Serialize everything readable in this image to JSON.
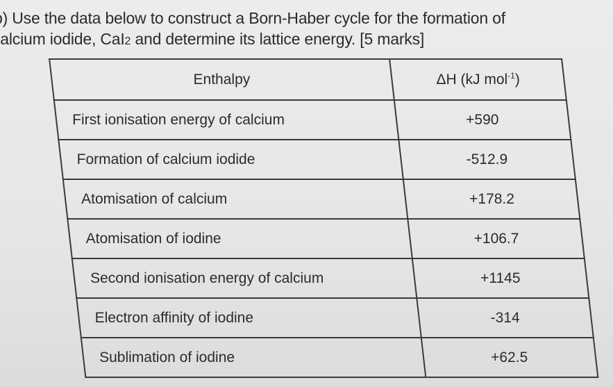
{
  "question": {
    "line1": "b) Use the data below to construct a Born-Haber cycle for the formation of",
    "line2_pre": "calcium iodide, CaI",
    "line2_sub": "2",
    "line2_post": " and determine its lattice energy. [5 marks]"
  },
  "table": {
    "headers": {
      "enthalpy": "Enthalpy",
      "dh_pre": "ΔH (kJ mol",
      "dh_sup": "-1",
      "dh_post": ")"
    },
    "rows": [
      {
        "enthalpy": "First ionisation energy of calcium",
        "value": "+590"
      },
      {
        "enthalpy": "Formation of calcium iodide",
        "value": "-512.9"
      },
      {
        "enthalpy": "Atomisation of calcium",
        "value": "+178.2"
      },
      {
        "enthalpy": "Atomisation of iodine",
        "value": "+106.7"
      },
      {
        "enthalpy": "Second ionisation energy of calcium",
        "value": "+1145"
      },
      {
        "enthalpy": "Electron affinity of iodine",
        "value": "-314"
      },
      {
        "enthalpy": "Sublimation of iodine",
        "value": "+62.5"
      }
    ]
  }
}
